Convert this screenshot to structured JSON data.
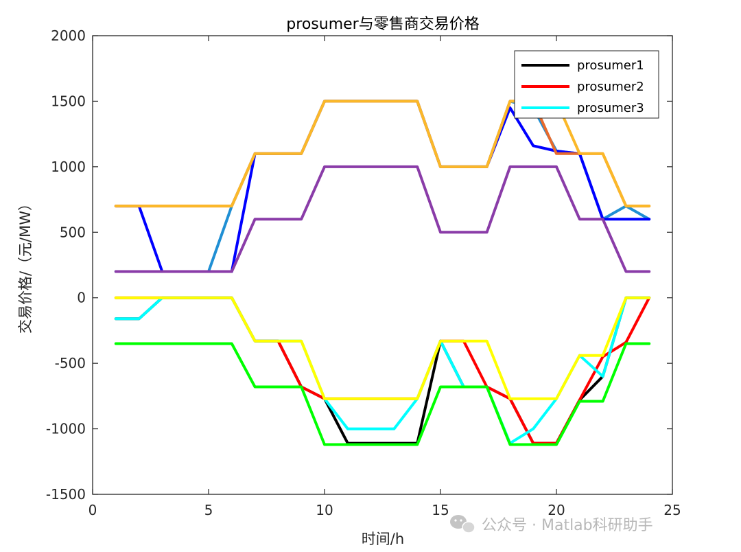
{
  "watermark": {
    "text": "公众号 · Matlab科研助手",
    "icon": "wechat-icon"
  },
  "chart_data": {
    "type": "line",
    "title": "prosumer与零售商交易价格",
    "xlabel": "时间/h",
    "ylabel": "交易价格/（元/MW）",
    "xlim": [
      0,
      25
    ],
    "ylim": [
      -1500,
      2000
    ],
    "xticks": [
      0,
      5,
      10,
      15,
      20,
      25
    ],
    "yticks": [
      -1500,
      -1000,
      -500,
      0,
      500,
      1000,
      1500,
      2000
    ],
    "grid": false,
    "legend_position": "top-right",
    "x": [
      1,
      2,
      3,
      4,
      5,
      6,
      7,
      8,
      9,
      10,
      11,
      12,
      13,
      14,
      15,
      16,
      17,
      18,
      19,
      20,
      21,
      22,
      23,
      24
    ],
    "series": [
      {
        "color": "#1f8fd4",
        "in_legend": false,
        "values": [
          200,
          200,
          200,
          200,
          200,
          700,
          1100,
          1100,
          1100,
          1500,
          1500,
          1500,
          1500,
          1500,
          1000,
          1000,
          1000,
          1500,
          1450,
          1120,
          1100,
          600,
          700,
          600
        ]
      },
      {
        "color": "#0000ff",
        "in_legend": false,
        "values": [
          700,
          700,
          200,
          200,
          200,
          200,
          1100,
          1100,
          1100,
          1500,
          1500,
          1500,
          1500,
          1500,
          1000,
          1000,
          1000,
          1450,
          1160,
          1120,
          1100,
          600,
          600,
          600
        ]
      },
      {
        "color": "#e86a2c",
        "in_legend": false,
        "values": [
          700,
          700,
          700,
          700,
          700,
          700,
          1100,
          1100,
          1100,
          1500,
          1500,
          1500,
          1500,
          1500,
          1000,
          1000,
          1000,
          1500,
          1500,
          1100,
          1100,
          1100,
          700,
          700
        ]
      },
      {
        "color": "#fbb829",
        "in_legend": false,
        "values": [
          700,
          700,
          700,
          700,
          700,
          700,
          1100,
          1100,
          1100,
          1500,
          1500,
          1500,
          1500,
          1500,
          1000,
          1000,
          1000,
          1500,
          1500,
          1500,
          1100,
          1100,
          700,
          700
        ]
      },
      {
        "color": "#8a3ca8",
        "in_legend": false,
        "values": [
          200,
          200,
          200,
          200,
          200,
          200,
          600,
          600,
          600,
          1000,
          1000,
          1000,
          1000,
          1000,
          500,
          500,
          500,
          1000,
          1000,
          1000,
          600,
          600,
          200,
          200
        ]
      },
      {
        "name": "prosumer1",
        "color": "#000000",
        "in_legend": true,
        "values": [
          -160,
          -160,
          0,
          0,
          0,
          0,
          -330,
          -330,
          -680,
          -770,
          -1110,
          -1110,
          -1110,
          -1110,
          -330,
          -680,
          -680,
          -770,
          -1110,
          -1110,
          -780,
          -600,
          0,
          0
        ]
      },
      {
        "name": "prosumer2",
        "color": "#ff0000",
        "in_legend": true,
        "values": [
          0,
          0,
          0,
          0,
          0,
          0,
          -330,
          -330,
          -680,
          -770,
          -770,
          -770,
          -770,
          -770,
          -330,
          -330,
          -680,
          -770,
          -1110,
          -1110,
          -780,
          -450,
          -340,
          0
        ]
      },
      {
        "name": "prosumer3",
        "color": "#00ffff",
        "in_legend": true,
        "values": [
          -160,
          -160,
          0,
          0,
          0,
          0,
          -330,
          -330,
          -330,
          -770,
          -1000,
          -1000,
          -1000,
          -770,
          -330,
          -680,
          -680,
          -1110,
          -1000,
          -770,
          -440,
          -600,
          0,
          0
        ]
      },
      {
        "color": "#ffff00",
        "in_legend": false,
        "values": [
          0,
          0,
          0,
          0,
          0,
          0,
          -330,
          -330,
          -330,
          -770,
          -770,
          -770,
          -770,
          -770,
          -330,
          -330,
          -330,
          -770,
          -770,
          -770,
          -440,
          -440,
          0,
          0
        ]
      },
      {
        "color": "#00ff00",
        "in_legend": false,
        "values": [
          -350,
          -350,
          -350,
          -350,
          -350,
          -350,
          -680,
          -680,
          -680,
          -1120,
          -1120,
          -1120,
          -1120,
          -1120,
          -680,
          -680,
          -680,
          -1120,
          -1120,
          -1120,
          -790,
          -790,
          -350,
          -350
        ]
      }
    ]
  }
}
